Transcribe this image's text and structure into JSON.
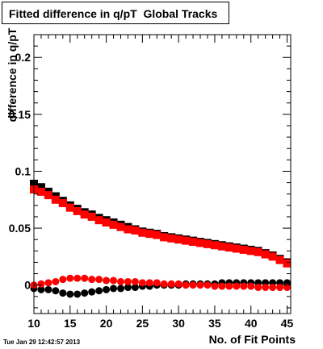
{
  "title": "Fitted difference in q/pT  Global Tracks",
  "timestamp": "Tue Jan 29 12:42:57 2013",
  "chart_data": {
    "type": "scatter",
    "title": "Fitted difference in q/pT  Global Tracks",
    "xlabel": "No. of Fit Points",
    "ylabel": "difference in q/pT",
    "xlim": [
      10,
      45.5
    ],
    "ylim": [
      -0.025,
      0.22
    ],
    "x_ticks": [
      "10",
      "15",
      "20",
      "25",
      "30",
      "35",
      "40",
      "45"
    ],
    "y_ticks": [
      "0",
      "0.05",
      "0.1",
      "0.15",
      "0.2"
    ],
    "y_tick_values": [
      0,
      0.05,
      0.1,
      0.15,
      0.2
    ],
    "grid": false,
    "x": [
      10,
      11,
      12,
      13,
      14,
      15,
      16,
      17,
      18,
      19,
      20,
      21,
      22,
      23,
      24,
      25,
      26,
      27,
      28,
      29,
      30,
      31,
      32,
      33,
      34,
      35,
      36,
      37,
      38,
      39,
      40,
      41,
      42,
      43,
      44,
      45
    ],
    "series": [
      {
        "color": "#000000",
        "marker": "square",
        "values": [
          0.089,
          0.086,
          0.082,
          0.078,
          0.074,
          0.07,
          0.067,
          0.064,
          0.062,
          0.059,
          0.057,
          0.055,
          0.053,
          0.051,
          0.049,
          0.047,
          0.046,
          0.045,
          0.043,
          0.042,
          0.041,
          0.04,
          0.039,
          0.038,
          0.037,
          0.036,
          0.035,
          0.034,
          0.033,
          0.032,
          0.031,
          0.03,
          0.028,
          0.026,
          0.023,
          0.02
        ]
      },
      {
        "color": "#ff0000",
        "marker": "square",
        "values": [
          0.084,
          0.082,
          0.079,
          0.075,
          0.072,
          0.068,
          0.065,
          0.062,
          0.06,
          0.057,
          0.055,
          0.053,
          0.051,
          0.049,
          0.048,
          0.046,
          0.045,
          0.044,
          0.042,
          0.041,
          0.04,
          0.039,
          0.038,
          0.037,
          0.036,
          0.035,
          0.034,
          0.033,
          0.032,
          0.031,
          0.03,
          0.029,
          0.027,
          0.025,
          0.022,
          0.019
        ]
      },
      {
        "color": "#000000",
        "marker": "circle",
        "values": [
          -0.003,
          -0.004,
          -0.004,
          -0.005,
          -0.007,
          -0.008,
          -0.008,
          -0.007,
          -0.006,
          -0.005,
          -0.004,
          -0.003,
          -0.003,
          -0.002,
          -0.002,
          -0.001,
          -0.001,
          0.0,
          0.0,
          0.0,
          0.0,
          0.001,
          0.001,
          0.001,
          0.001,
          0.001,
          0.002,
          0.002,
          0.002,
          0.002,
          0.002,
          0.002,
          0.002,
          0.002,
          0.002,
          0.002
        ]
      },
      {
        "color": "#ff0000",
        "marker": "circle",
        "values": [
          0.0,
          0.001,
          0.002,
          0.003,
          0.005,
          0.006,
          0.006,
          0.006,
          0.005,
          0.005,
          0.004,
          0.004,
          0.003,
          0.003,
          0.003,
          0.002,
          0.002,
          0.002,
          0.001,
          0.001,
          0.001,
          0.0,
          0.0,
          0.0,
          0.0,
          -0.001,
          -0.001,
          -0.001,
          -0.001,
          -0.001,
          -0.001,
          -0.002,
          -0.002,
          -0.002,
          -0.002,
          -0.002
        ]
      }
    ]
  }
}
